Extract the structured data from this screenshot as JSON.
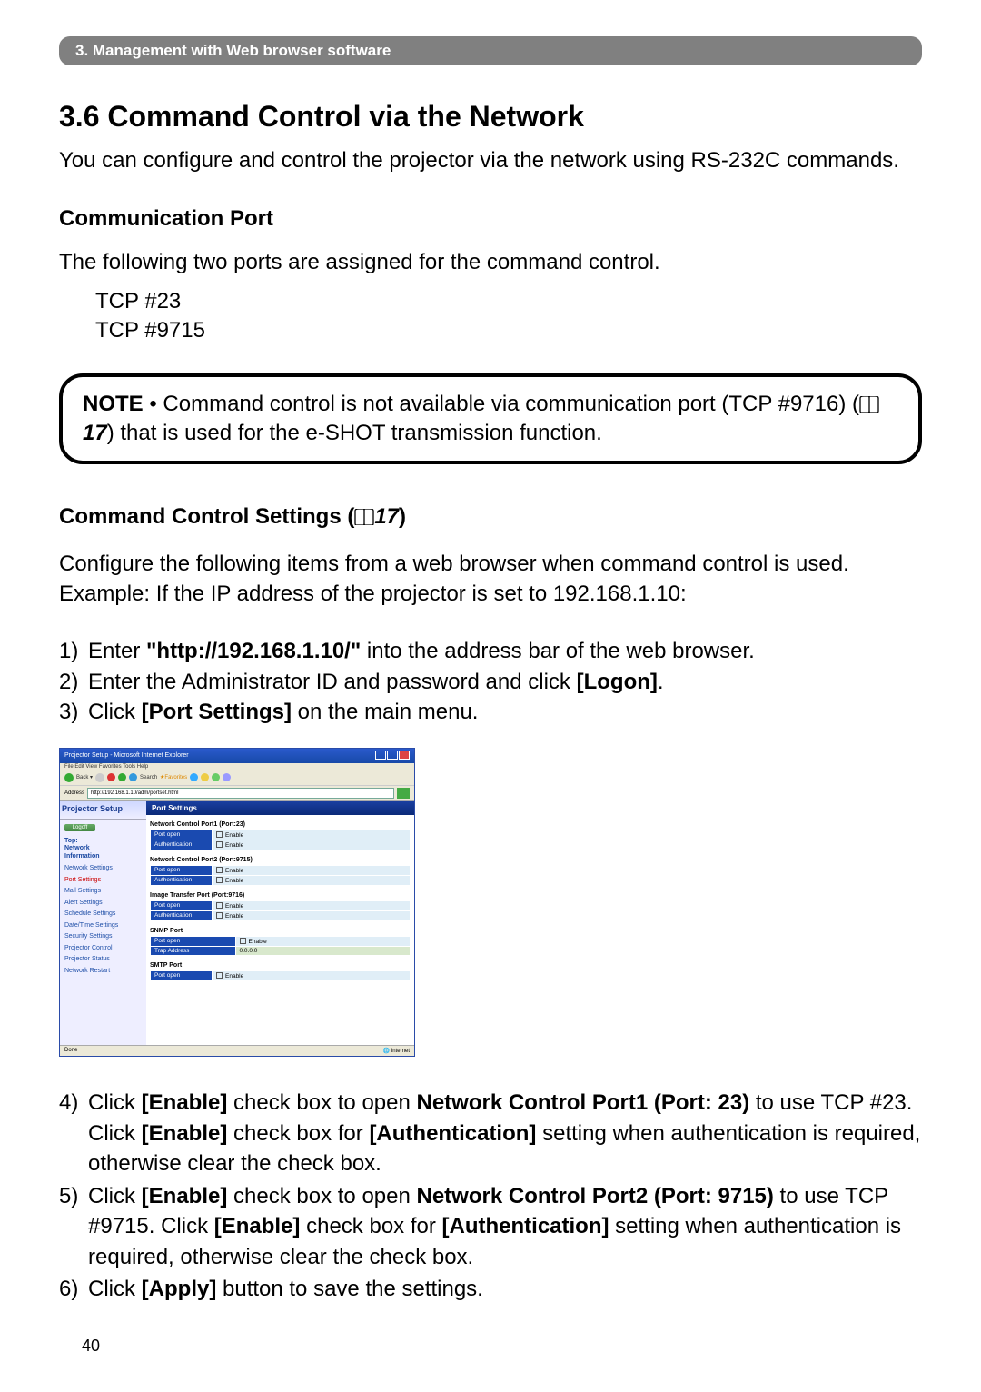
{
  "breadcrumb": "3. Management with Web browser software",
  "h1": "3.6 Command Control via the Network",
  "intro": "You can configure and control the projector via the network using RS-232C commands.",
  "comm_port_title": "Communication Port",
  "comm_port_text": "The following two ports are assigned for the command control.",
  "port1": "TCP #23",
  "port2": "TCP #9715",
  "note_label": "NOTE",
  "note_text_a": " • Command control is not available via communication port (TCP #9716) (",
  "note_ref": "17",
  "note_text_b": ") that is used for the e-SHOT transmission function.",
  "settings_title": "Command Control Settings (",
  "settings_ref": "17",
  "settings_title_end": ")",
  "cc_para": "Configure the following items from a web browser when command control is used. Example: If the IP address of the projector is set to 192.168.1.10:",
  "step1_pre": "Enter ",
  "step1_url": "\"http://192.168.1.10/\"",
  "step1_post": " into the address bar of the web browser.",
  "step2_pre": "Enter the Administrator ID and password and click ",
  "step2_btn": "[Logon]",
  "step2_post": ".",
  "step3_pre": "Click ",
  "step3_btn": "[Port Settings]",
  "step3_post": " on the main menu.",
  "ss": {
    "title": "Projector Setup - Microsoft Internet Explorer",
    "menu": "File   Edit   View   Favorites   Tools   Help",
    "addr": "http://192.168.1.10/adm/portset.html",
    "logo": "Projector Setup",
    "logoff": "Logoff",
    "top": "Top:\nNetwork\nInformation",
    "nav": [
      "Network Settings",
      "Port Settings",
      "Mail Settings",
      "Alert Settings",
      "Schedule Settings",
      "Date/Time Settings",
      "Security Settings",
      "Projector Control",
      "Projector Status",
      "Network Restart"
    ],
    "nav_active_index": 1,
    "panel_header": "Port Settings",
    "groups": [
      {
        "t": "Network Control Port1 (Port:23)",
        "rows": [
          [
            "Port open",
            "Enable"
          ],
          [
            "Authentication",
            "Enable"
          ]
        ]
      },
      {
        "t": "Network Control Port2 (Port:9715)",
        "rows": [
          [
            "Port open",
            "Enable"
          ],
          [
            "Authentication",
            "Enable"
          ]
        ]
      },
      {
        "t": "Image Transfer Port (Port:9716)",
        "rows": [
          [
            "Port open",
            "Enable"
          ],
          [
            "Authentication",
            "Enable"
          ]
        ]
      },
      {
        "t": "SNMP Port",
        "rows": [
          [
            "Port open",
            "Enable"
          ],
          [
            "Trap Address",
            "0.0.0.0"
          ]
        ]
      },
      {
        "t": "SMTP Port",
        "rows": [
          [
            "Port open",
            "Enable"
          ]
        ]
      }
    ],
    "status_left": "Done",
    "status_right": "Internet"
  },
  "step4_a": "Click ",
  "step4_b": "[Enable]",
  "step4_c": " check box to open ",
  "step4_d": "Network Control Port1 (Port: 23)",
  "step4_e": " to use TCP #23. Click ",
  "step4_f": "[Enable]",
  "step4_g": " check box for ",
  "step4_h": "[Authentication]",
  "step4_i": " setting when authentication is required, otherwise clear the check box.",
  "step5_a": "Click ",
  "step5_b": "[Enable]",
  "step5_c": " check box to open ",
  "step5_d": "Network Control Port2 (Port: 9715)",
  "step5_e": " to use TCP #9715. Click ",
  "step5_f": "[Enable]",
  "step5_g": " check box for ",
  "step5_h": "[Authentication]",
  "step5_i": " setting when authentication is required, otherwise clear the check box.",
  "step6_a": "Click ",
  "step6_b": "[Apply]",
  "step6_c": " button to save the settings.",
  "page_no": "40",
  "colors": {
    "breadcrumb_bg": "#808080",
    "ie_titlebar": "#2a5acb",
    "panel_header": "#1a3fa0",
    "th_bg": "#1a4ab0",
    "td_bg": "#e0eef7",
    "nav_color": "#2050a8",
    "nav_active": "#c00"
  }
}
